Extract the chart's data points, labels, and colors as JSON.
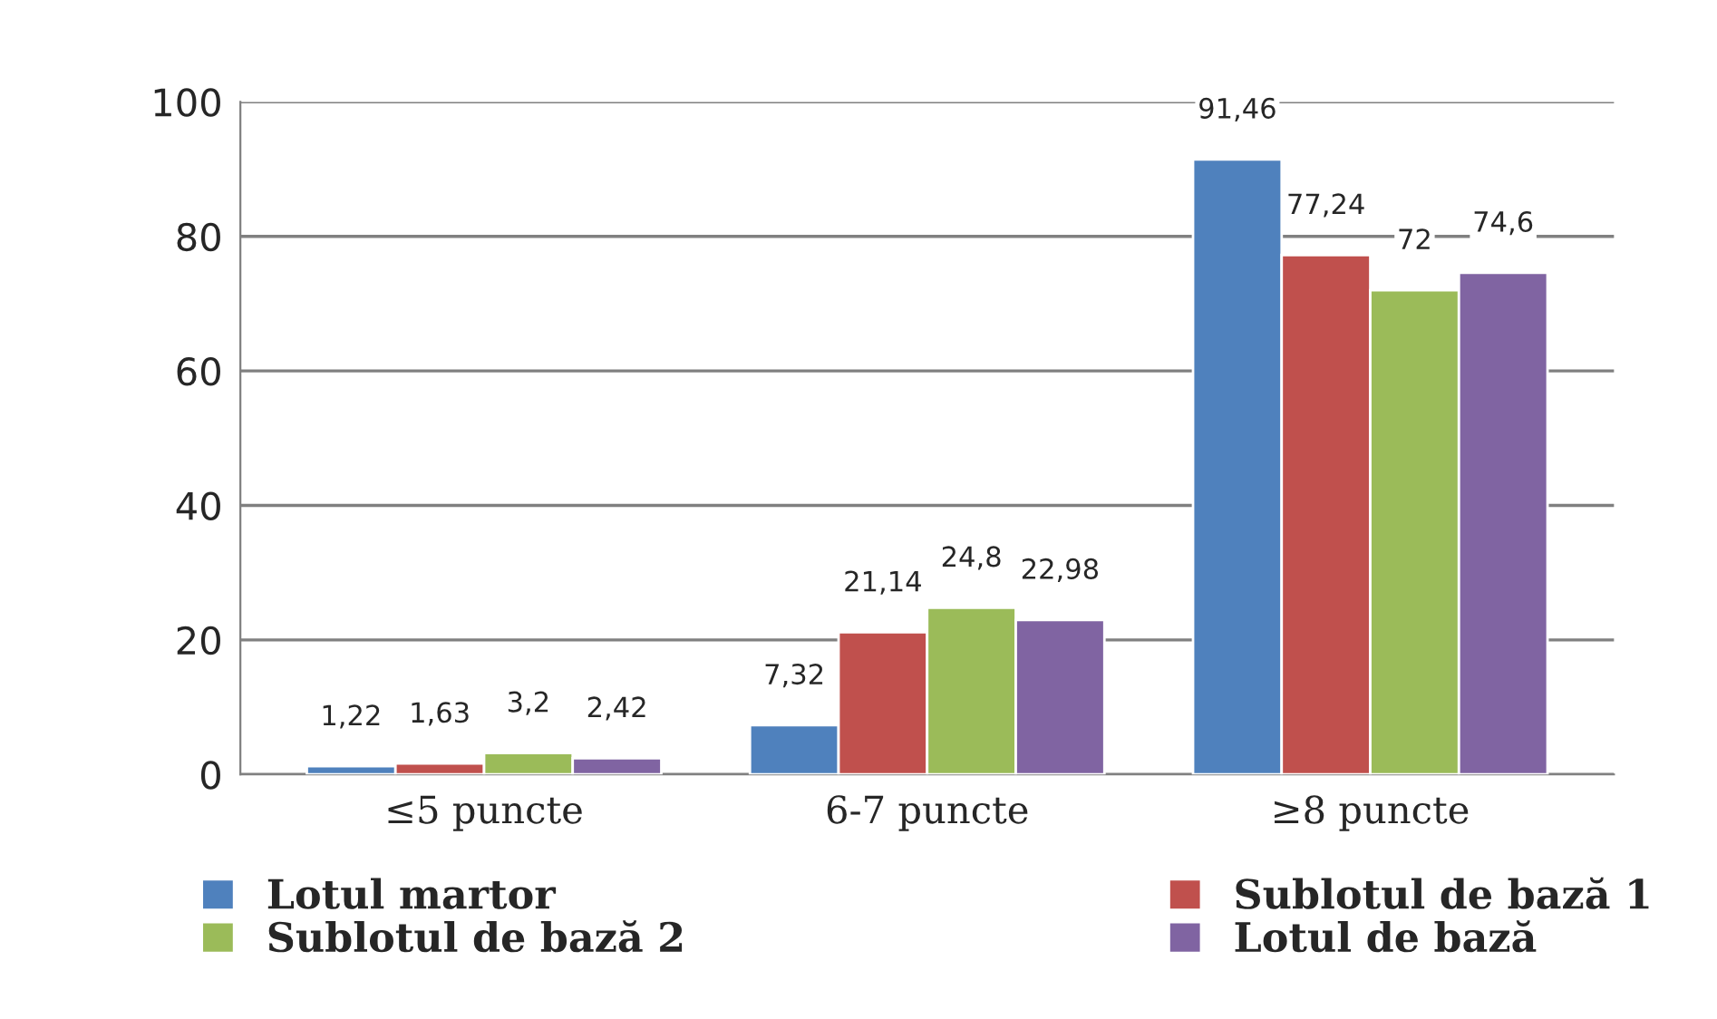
{
  "chart_data": {
    "type": "bar",
    "categories": [
      "≤5 puncte",
      "6-7 puncte",
      "≥8 puncte"
    ],
    "series": [
      {
        "name": "Lotul martor",
        "color": "#4f81bd",
        "values": [
          1.22,
          7.32,
          91.46
        ],
        "value_labels": [
          "1,22",
          "7,32",
          "91,46"
        ]
      },
      {
        "name": "Sublotul de bază 1",
        "color": "#c0504d",
        "values": [
          1.63,
          21.14,
          77.24
        ],
        "value_labels": [
          "1,63",
          "21,14",
          "77,24"
        ]
      },
      {
        "name": "Sublotul de bază 2",
        "color": "#9bbb59",
        "values": [
          3.2,
          24.8,
          72
        ],
        "value_labels": [
          "3,2",
          "24,8",
          "72"
        ]
      },
      {
        "name": "Lotul de bază",
        "color": "#8064a2",
        "values": [
          2.42,
          22.98,
          74.6
        ],
        "value_labels": [
          "2,42",
          "22,98",
          "74,6"
        ]
      }
    ],
    "ylim": [
      0,
      100
    ],
    "yticks": [
      0,
      20,
      40,
      60,
      80,
      100
    ],
    "grid": "y",
    "legend": "bottom"
  }
}
